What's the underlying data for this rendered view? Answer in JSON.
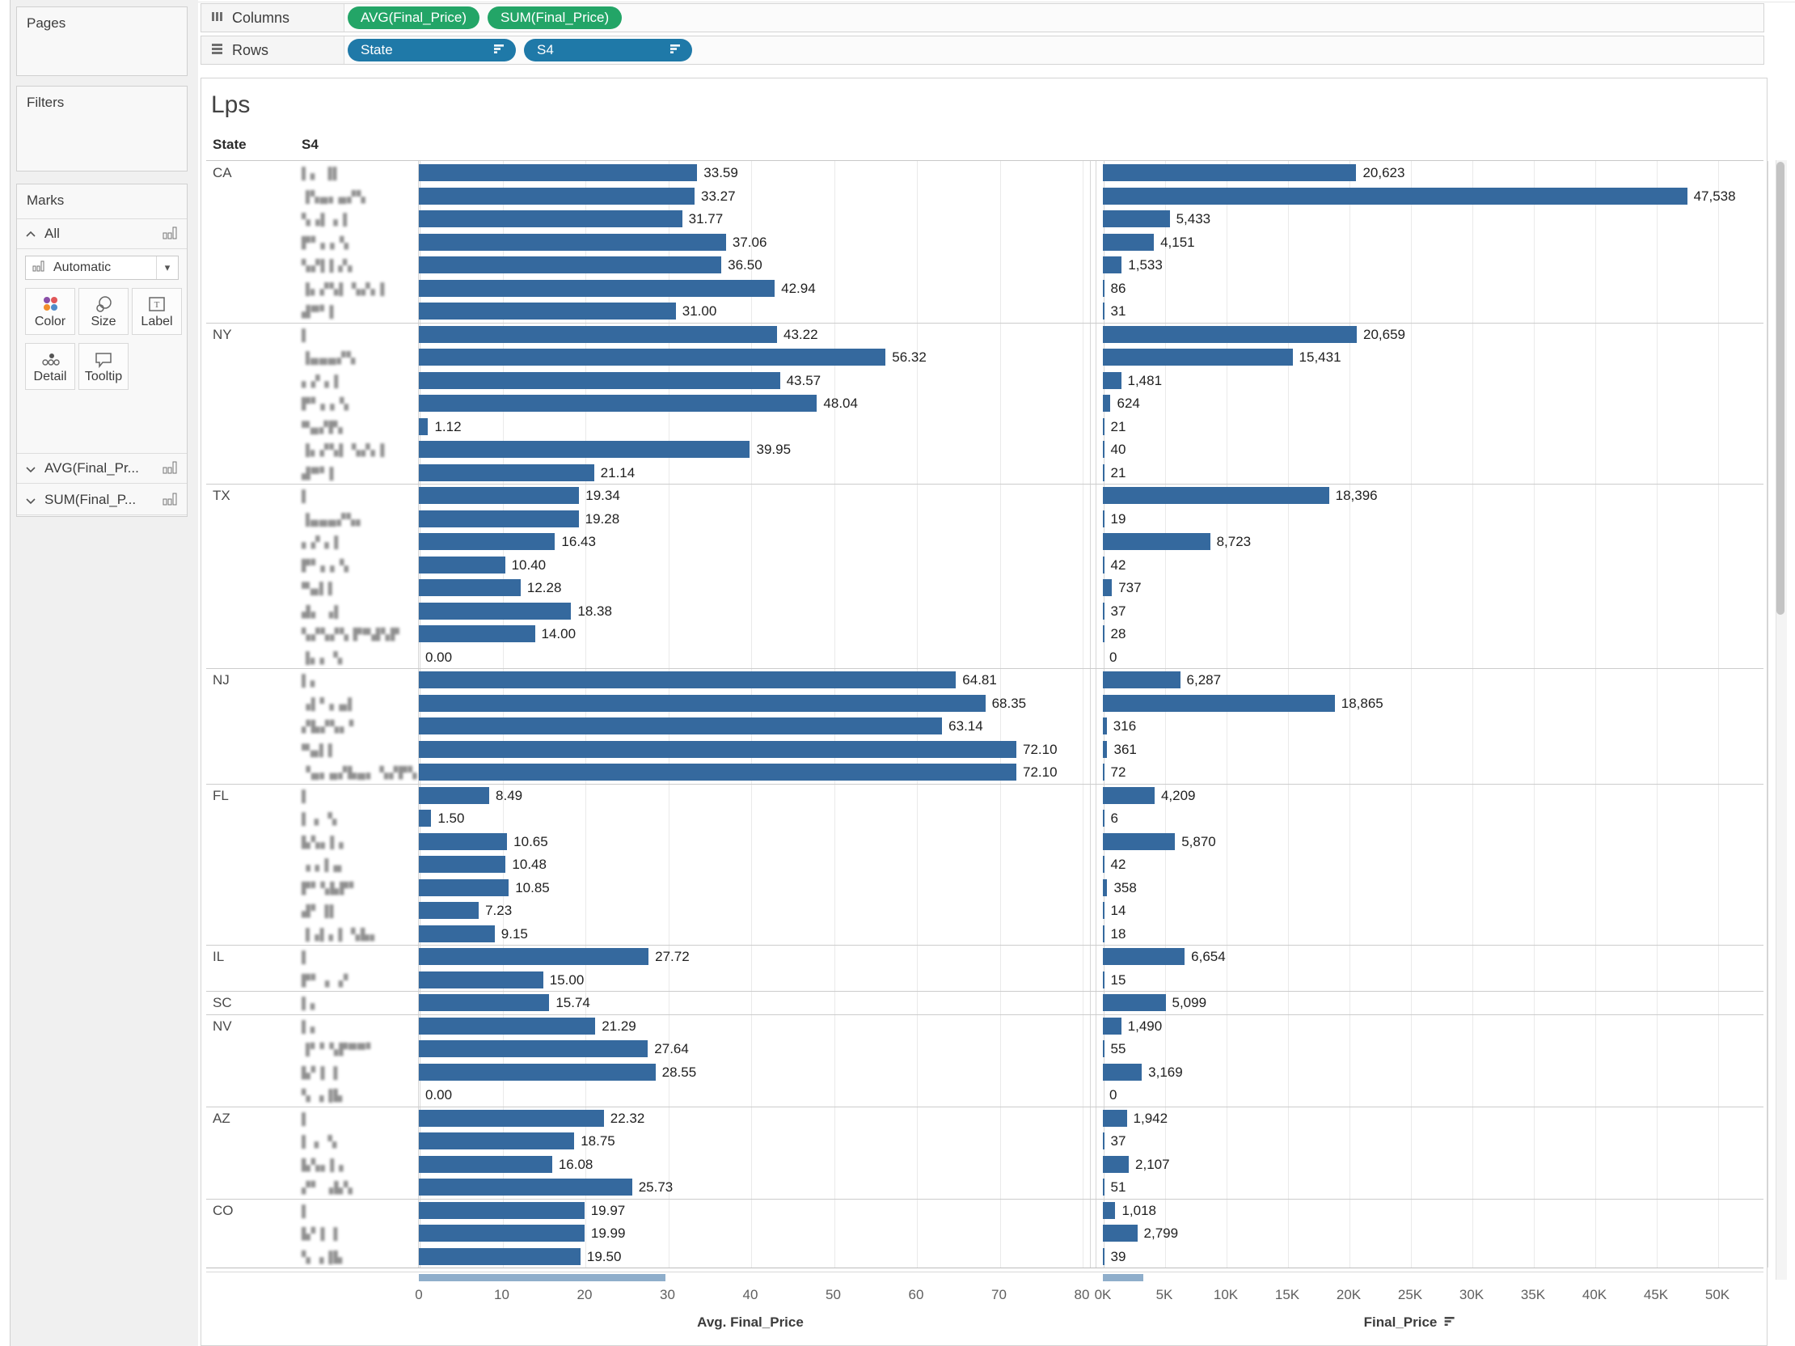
{
  "sidebar": {
    "pages_label": "Pages",
    "filters_label": "Filters",
    "marks": {
      "title": "Marks",
      "all_label": "All",
      "mark_type_selected": "Automatic",
      "buttons": [
        "Color",
        "Size",
        "Label",
        "Detail",
        "Tooltip"
      ],
      "layers": [
        "AVG(Final_Pr...",
        "SUM(Final_P..."
      ]
    }
  },
  "shelves": {
    "columns": {
      "label": "Columns",
      "pills": [
        "AVG(Final_Price)",
        "SUM(Final_Price)"
      ]
    },
    "rows": {
      "label": "Rows",
      "pills": [
        "State",
        "S4"
      ]
    }
  },
  "colors": {
    "bar": "#35699E",
    "partial_bar": "#8FAECB",
    "pill_measure_green": "#23A567",
    "pill_dimension_blue": "#1F79A8"
  },
  "chart_data": {
    "type": "bar",
    "title": "Lps",
    "row_headers": [
      "State",
      "S4"
    ],
    "s4_labels_redacted": true,
    "panes": [
      {
        "xlabel": "Avg. Final_Price",
        "xlim": [
          0,
          80
        ],
        "ticks": [
          "0",
          "10",
          "20",
          "30",
          "40",
          "50",
          "60",
          "70",
          "80"
        ],
        "sort_icon": false
      },
      {
        "xlabel": "Final_Price",
        "xlim": [
          0,
          50000
        ],
        "ticks": [
          "0K",
          "5K",
          "10K",
          "15K",
          "20K",
          "25K",
          "30K",
          "35K",
          "40K",
          "45K",
          "50K"
        ],
        "sort_icon": true
      }
    ],
    "groups": [
      {
        "state": "CA",
        "rows": [
          {
            "blur": "▌▖ ▐▌",
            "avg": 33.59,
            "sum": 20623
          },
          {
            "blur": "▐▚▄▖▄▞▚",
            "avg": 33.27,
            "sum": 47538
          },
          {
            "blur": "▚▗▌ ▖▌",
            "avg": 31.77,
            "sum": 5433
          },
          {
            "blur": "▛▘▖▖▚",
            "avg": 37.06,
            "sum": 4151
          },
          {
            "blur": "▚▞▌▌▞▖",
            "avg": 36.5,
            "sum": 1533
          },
          {
            "blur": "▐▖▞▚▌ ▚▞▖▌",
            "avg": 42.94,
            "sum": 86
          },
          {
            "blur": "▟▀▘▌",
            "avg": 31.0,
            "sum": 31
          }
        ]
      },
      {
        "state": "NY",
        "rows": [
          {
            "blur": "▌",
            "avg": 43.22,
            "sum": 20659
          },
          {
            "blur": "▐▄▄▄▞▚",
            "avg": 56.32,
            "sum": 15431
          },
          {
            "blur": "▖▞ ▖▌",
            "avg": 43.57,
            "sum": 1481
          },
          {
            "blur": "▛▘▖▖▚",
            "avg": 48.04,
            "sum": 624
          },
          {
            "blur": "▀▄▞▛▖",
            "avg": 1.12,
            "sum": 21
          },
          {
            "blur": "▐▖▞▚▌ ▚▞▖▌",
            "avg": 39.95,
            "sum": 40
          },
          {
            "blur": "▟▀▘▌",
            "avg": 21.14,
            "sum": 21
          }
        ]
      },
      {
        "state": "TX",
        "rows": [
          {
            "blur": "▌",
            "avg": 19.34,
            "sum": 18396
          },
          {
            "blur": "▐▄▄▄▞▚▖",
            "avg": 19.28,
            "sum": 19
          },
          {
            "blur": "▖▞ ▖▌",
            "avg": 16.43,
            "sum": 8723
          },
          {
            "blur": "▛▘▖▖▚",
            "avg": 10.4,
            "sum": 42
          },
          {
            "blur": "▀▄▌▌",
            "avg": 12.28,
            "sum": 737
          },
          {
            "blur": "▟▖ ▗▌",
            "avg": 18.38,
            "sum": 37
          },
          {
            "blur": "▚▞▚▞▚ ▛▀▟▚▛",
            "avg": 14.0,
            "sum": 28
          },
          {
            "blur": "▐▖▖ ▚",
            "avg": 0.0,
            "sum": 0
          }
        ]
      },
      {
        "state": "NJ",
        "rows": [
          {
            "blur": "▌▖",
            "avg": 64.81,
            "sum": 6287
          },
          {
            "blur": "▗▌▘▖▄▌",
            "avg": 68.35,
            "sum": 18865
          },
          {
            "blur": "▞▙▞▚▖▘",
            "avg": 63.14,
            "sum": 316
          },
          {
            "blur": "▀▄▌▌",
            "avg": 72.1,
            "sum": 361
          },
          {
            "blur": "▝▄▖▄▞▙▄▖ ▚▞▛▚",
            "avg": 72.1,
            "sum": 72
          }
        ]
      },
      {
        "state": "FL",
        "rows": [
          {
            "blur": "▌",
            "avg": 8.49,
            "sum": 4209
          },
          {
            "blur": "▌ ▖ ▚",
            "avg": 1.5,
            "sum": 6
          },
          {
            "blur": "▙▚▖▌▖",
            "avg": 10.65,
            "sum": 5870
          },
          {
            "blur": "▗ ▖▌▄",
            "avg": 10.48,
            "sum": 42
          },
          {
            "blur": "▛▘▚▙▛▘",
            "avg": 10.85,
            "sum": 358
          },
          {
            "blur": "▟▘▐▌",
            "avg": 7.23,
            "sum": 14
          },
          {
            "blur": "▐▗▌▖▌ ▚▙▖",
            "avg": 9.15,
            "sum": 18
          }
        ]
      },
      {
        "state": "IL",
        "rows": [
          {
            "blur": "▌",
            "avg": 27.72,
            "sum": 6654
          },
          {
            "blur": "▛▘▗ ▗▘",
            "avg": 15.0,
            "sum": 15
          }
        ]
      },
      {
        "state": "SC",
        "rows": [
          {
            "blur": "▌▖",
            "avg": 15.74,
            "sum": 5099
          }
        ]
      },
      {
        "state": "NV",
        "rows": [
          {
            "blur": "▌▖",
            "avg": 21.29,
            "sum": 1490
          },
          {
            "blur": "▐▘▘▚▛▀▀▘",
            "avg": 27.64,
            "sum": 55
          },
          {
            "blur": "▙▘▌ ▌",
            "avg": 28.55,
            "sum": 3169
          },
          {
            "blur": "▚ ▗▐▙",
            "avg": 0.0,
            "sum": 0
          }
        ]
      },
      {
        "state": "AZ",
        "rows": [
          {
            "blur": "▌",
            "avg": 22.32,
            "sum": 1942
          },
          {
            "blur": "▌ ▖ ▚",
            "avg": 18.75,
            "sum": 37
          },
          {
            "blur": "▙▚▖▌▖",
            "avg": 16.08,
            "sum": 2107
          },
          {
            "blur": "▞▘ ▗▙▚",
            "avg": 25.73,
            "sum": 51
          }
        ]
      },
      {
        "state": "CO",
        "rows": [
          {
            "blur": "▌",
            "avg": 19.97,
            "sum": 1018
          },
          {
            "blur": "▙▘▌ ▌",
            "avg": 19.99,
            "sum": 2799
          },
          {
            "blur": "▚ ▗▐▙",
            "avg": 19.5,
            "sum": 39
          }
        ]
      }
    ],
    "partial_bottom_row": {
      "left_extent_units": 29.8,
      "right_extent_units": 3300
    }
  }
}
